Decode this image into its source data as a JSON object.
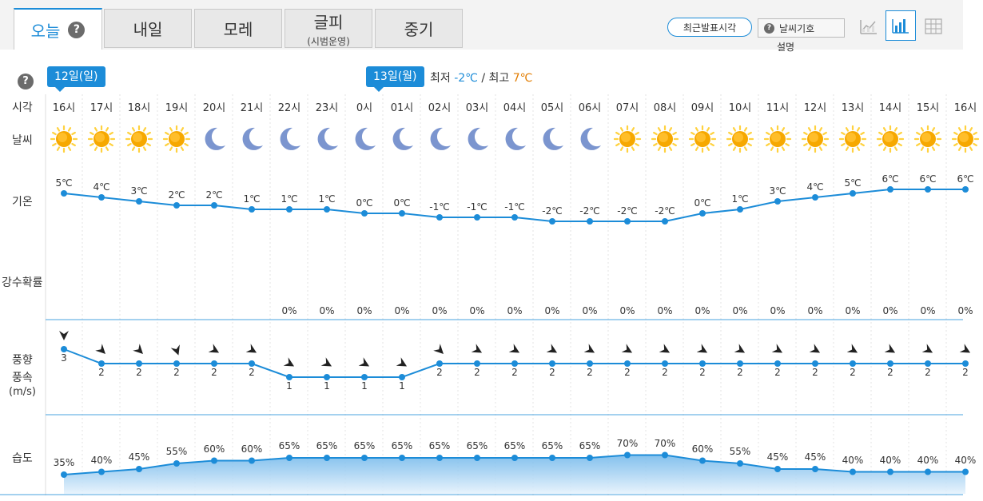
{
  "tabs": [
    {
      "label": "오늘",
      "sub": "",
      "active": true
    },
    {
      "label": "내일",
      "sub": ""
    },
    {
      "label": "모레",
      "sub": ""
    },
    {
      "label": "글피",
      "sub": "(시범운영)"
    },
    {
      "label": "중기",
      "sub": ""
    }
  ],
  "toolbar": {
    "recent_label": "최근발표시각",
    "symbol_label": "날씨기호",
    "symbol_sub": "설명",
    "help": "?"
  },
  "labels": {
    "time": "시각",
    "weather": "날씨",
    "temp": "기온",
    "precip": "강수확률",
    "wind_dir": "풍향",
    "wind_speed": "풍속",
    "wind_unit": "(m/s)",
    "humidity": "습도"
  },
  "days": [
    {
      "label": "12일(일)"
    },
    {
      "label": "13일(월)"
    }
  ],
  "minmax": {
    "min_label": "최저",
    "min": "-2℃",
    "sep": "/",
    "max_label": "최고",
    "max": "7℃"
  },
  "colors": {
    "accent": "#1c8cd8",
    "hi": "#e27c00",
    "sun": "#f6a800",
    "moon": "#7b95cf"
  },
  "hours": [
    "16시",
    "17시",
    "18시",
    "19시",
    "20시",
    "21시",
    "22시",
    "23시",
    "0시",
    "01시",
    "02시",
    "03시",
    "04시",
    "05시",
    "06시",
    "07시",
    "08시",
    "09시",
    "10시",
    "11시",
    "12시",
    "13시",
    "14시",
    "15시",
    "16시"
  ],
  "weather": [
    "sun-icon",
    "sun-icon",
    "sun-icon",
    "sun-icon",
    "moon-icon",
    "moon-icon",
    "moon-icon",
    "moon-icon",
    "moon-icon",
    "moon-icon",
    "moon-icon",
    "moon-icon",
    "moon-icon",
    "moon-icon",
    "moon-icon",
    "sun-icon",
    "sun-icon",
    "sun-icon",
    "sun-icon",
    "sun-icon",
    "sun-icon",
    "sun-icon",
    "sun-icon",
    "sun-icon",
    "sun-icon"
  ],
  "temps": [
    5,
    4,
    3,
    2,
    2,
    1,
    1,
    1,
    0,
    0,
    -1,
    -1,
    -1,
    -2,
    -2,
    -2,
    -2,
    0,
    1,
    3,
    4,
    5,
    6,
    6,
    6
  ],
  "temp_unit": "℃",
  "precip": [
    "",
    "",
    "",
    "",
    "",
    "",
    "0%",
    "0%",
    "0%",
    "0%",
    "0%",
    "0%",
    "0%",
    "0%",
    "0%",
    "0%",
    "0%",
    "0%",
    "0%",
    "0%",
    "0%",
    "0%",
    "0%",
    "0%",
    "0%"
  ],
  "wind_speed": [
    3,
    2,
    2,
    2,
    2,
    2,
    1,
    1,
    1,
    1,
    2,
    2,
    2,
    2,
    2,
    2,
    2,
    2,
    2,
    2,
    2,
    2,
    2,
    2,
    2
  ],
  "wind_dir_deg": [
    0,
    315,
    315,
    340,
    300,
    300,
    300,
    300,
    300,
    300,
    315,
    300,
    300,
    300,
    300,
    300,
    300,
    300,
    300,
    300,
    300,
    300,
    300,
    300,
    300
  ],
  "humidity": [
    35,
    40,
    45,
    55,
    60,
    60,
    65,
    65,
    65,
    65,
    65,
    65,
    65,
    65,
    65,
    70,
    70,
    60,
    55,
    45,
    45,
    40,
    40,
    40,
    40
  ],
  "humidity_unit": "%"
}
